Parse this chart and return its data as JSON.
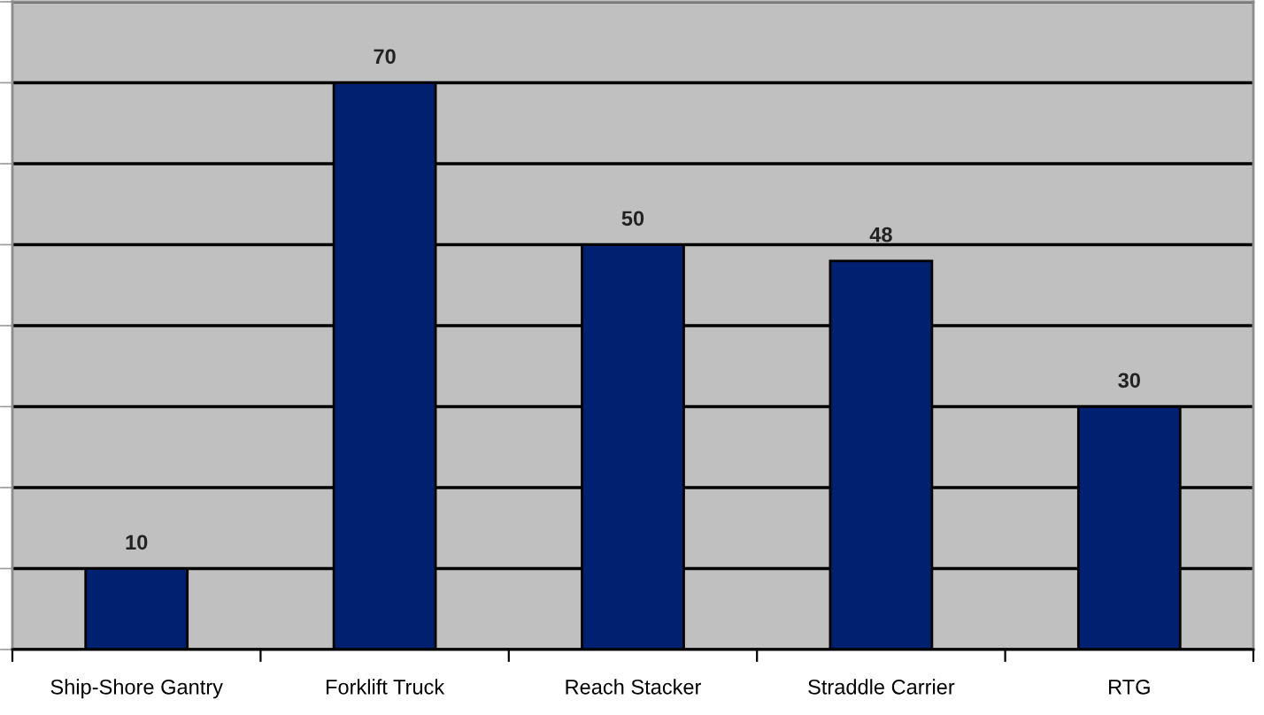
{
  "chart_data": {
    "type": "bar",
    "categories": [
      "Ship-Shore Gantry",
      "Forklift Truck",
      "Reach Stacker",
      "Straddle Carrier",
      "RTG"
    ],
    "values": [
      10,
      70,
      50,
      48,
      30
    ],
    "color": "#002070",
    "ylim": [
      0,
      80
    ],
    "yticks": [
      {
        "value": 0,
        "label": null
      },
      {
        "value": 10,
        "label": null
      },
      {
        "value": 20,
        "label": null
      },
      {
        "value": 30,
        "label": null
      },
      {
        "value": 40,
        "label": null
      },
      {
        "value": 50,
        "label": null
      },
      {
        "value": 60,
        "label": null
      },
      {
        "value": 70,
        "label": null
      },
      {
        "value": 80,
        "label": null
      }
    ],
    "grid": "y",
    "data_labels": true,
    "tick_labels": "x"
  }
}
